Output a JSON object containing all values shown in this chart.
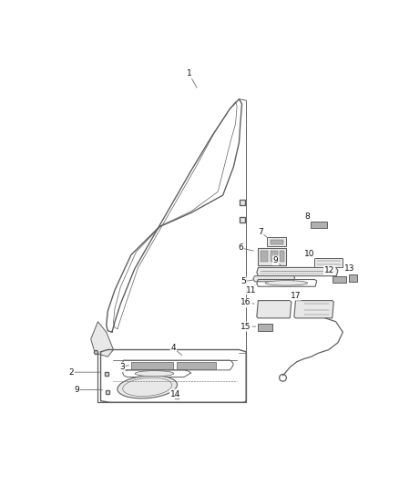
{
  "background_color": "#ffffff",
  "fig_width": 4.38,
  "fig_height": 5.33,
  "dpi": 100,
  "line_color": "#606060",
  "label_color": "#111111",
  "part_fill": "#e8e8e8",
  "dark_fill": "#b0b0b0"
}
